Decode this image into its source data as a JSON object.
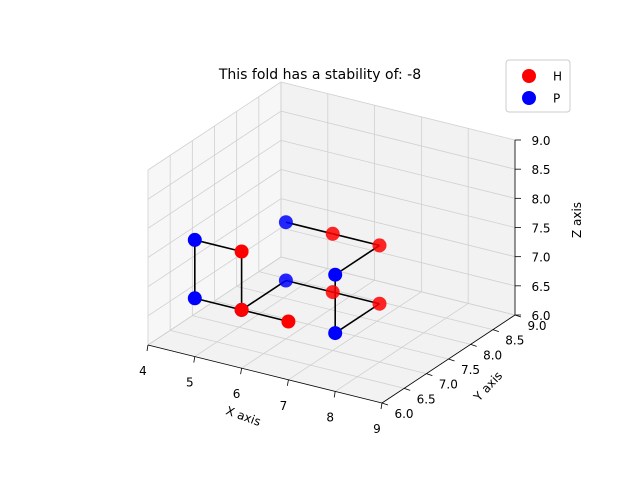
{
  "chart_data": {
    "type": "scatter",
    "title": "This fold has a stability of: -8",
    "xlabel": "X axis",
    "ylabel": "Y axis",
    "zlabel": "Z axis",
    "xlim": [
      4,
      9
    ],
    "ylim": [
      6.0,
      9.0
    ],
    "zlim": [
      6.0,
      9.0
    ],
    "xticks": [
      "4",
      "5",
      "6",
      "7",
      "8",
      "9"
    ],
    "yticks": [
      "6.0",
      "6.5",
      "7.0",
      "7.5",
      "8.0",
      "8.5",
      "9.0"
    ],
    "zticks": [
      "6.0",
      "6.5",
      "7.0",
      "7.5",
      "8.0",
      "8.5",
      "9.0"
    ],
    "grid": true,
    "legend_position": "top-right",
    "series": [
      {
        "name": "H",
        "color": "#ff0000"
      },
      {
        "name": "P",
        "color": "#0000ff"
      }
    ],
    "chain": [
      {
        "x": 6,
        "y": 7,
        "z": 8,
        "type": "P"
      },
      {
        "x": 7,
        "y": 7,
        "z": 8,
        "type": "H"
      },
      {
        "x": 8,
        "y": 7,
        "z": 8,
        "type": "H"
      },
      {
        "x": 8,
        "y": 6,
        "z": 8,
        "type": "P"
      },
      {
        "x": 8,
        "y": 6,
        "z": 7,
        "type": "P"
      },
      {
        "x": 8,
        "y": 7,
        "z": 7,
        "type": "H"
      },
      {
        "x": 7,
        "y": 7,
        "z": 7,
        "type": "H"
      },
      {
        "x": 6,
        "y": 7,
        "z": 7,
        "type": "P"
      },
      {
        "x": 6,
        "y": 6,
        "z": 7,
        "type": "P"
      },
      {
        "x": 6,
        "y": 6,
        "z": 8,
        "type": "H"
      },
      {
        "x": 5,
        "y": 6,
        "z": 8,
        "type": "P"
      },
      {
        "x": 5,
        "y": 6,
        "z": 7,
        "type": "P"
      },
      {
        "x": 6,
        "y": 6,
        "z": 7,
        "type": "H"
      },
      {
        "x": 7,
        "y": 6,
        "z": 7,
        "type": "H"
      }
    ]
  }
}
